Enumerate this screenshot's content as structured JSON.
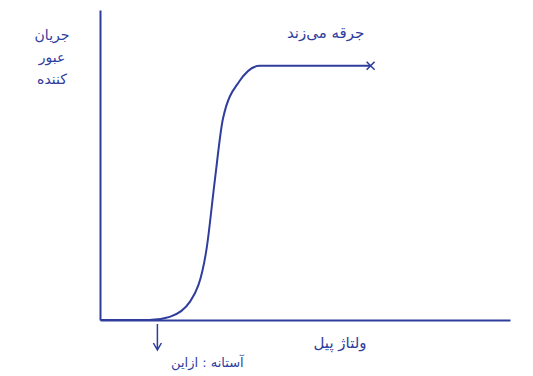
{
  "chart_data": {
    "type": "line",
    "x_label": "ولتاژ پیل",
    "y_label": "جریان عبور کننده",
    "annotations": [
      "جرقه می‌زند",
      "آستانه : ازاین"
    ],
    "threshold": 1.4,
    "x": [
      0,
      1.2,
      1.7,
      2.2,
      2.6,
      2.8,
      3.0,
      3.4,
      3.9,
      4.9,
      6.6
    ],
    "values": [
      0,
      0,
      0.1,
      0.6,
      2.3,
      4.5,
      6.5,
      7.7,
      8.2,
      8.2,
      8.2
    ],
    "color": "#2f3d9c",
    "xlim": [
      0,
      10
    ],
    "ylim": [
      0,
      10
    ],
    "xticks": [],
    "yticks": [],
    "grid": false,
    "tick_labels": false
  }
}
